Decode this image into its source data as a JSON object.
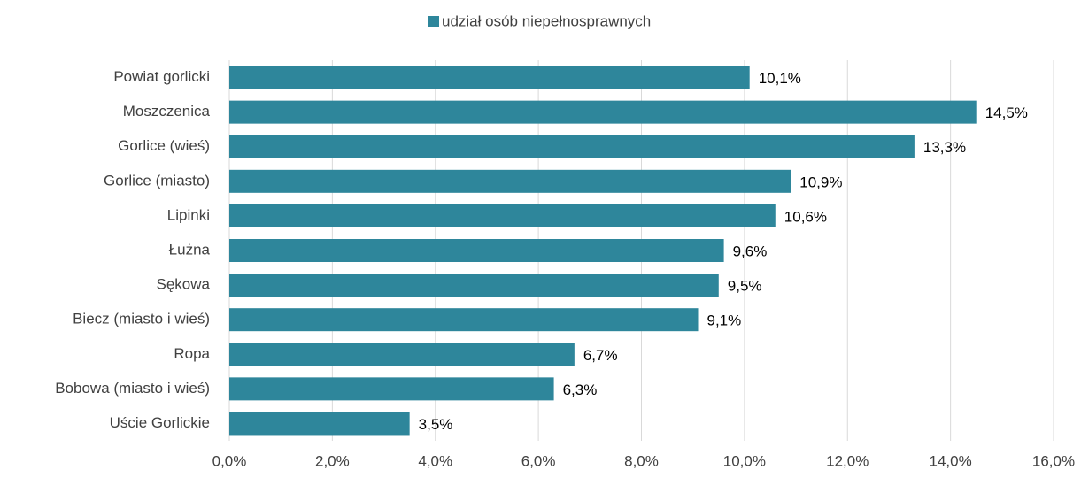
{
  "chart_data": {
    "type": "bar",
    "orientation": "horizontal",
    "legend": "top",
    "series": [
      {
        "name": "udział osób niepełnosprawnych",
        "color": "#2e869b",
        "values": [
          10.1,
          14.5,
          13.3,
          10.9,
          10.6,
          9.6,
          9.5,
          9.1,
          6.7,
          6.3,
          3.5
        ],
        "value_labels": [
          "10,1%",
          "14,5%",
          "13,3%",
          "10,9%",
          "10,6%",
          "9,6%",
          "9,5%",
          "9,1%",
          "6,7%",
          "6,3%",
          "3,5%"
        ]
      }
    ],
    "categories": [
      "Powiat gorlicki",
      "Moszczenica",
      "Gorlice (wieś)",
      "Gorlice (miasto)",
      "Lipinki",
      "Łużna",
      "Sękowa",
      "Biecz (miasto i wieś)",
      "Ropa",
      "Bobowa (miasto i wieś)",
      "Uście Gorlickie"
    ],
    "xlim": [
      0,
      16
    ],
    "xticks": [
      {
        "value": 0,
        "label": "0,0%"
      },
      {
        "value": 2,
        "label": "2,0%"
      },
      {
        "value": 4,
        "label": "4,0%"
      },
      {
        "value": 6,
        "label": "6,0%"
      },
      {
        "value": 8,
        "label": "8,0%"
      },
      {
        "value": 10,
        "label": "10,0%"
      },
      {
        "value": 12,
        "label": "12,0%"
      },
      {
        "value": 14,
        "label": "14,0%"
      },
      {
        "value": 16,
        "label": "16,0%"
      }
    ],
    "grid": true
  }
}
